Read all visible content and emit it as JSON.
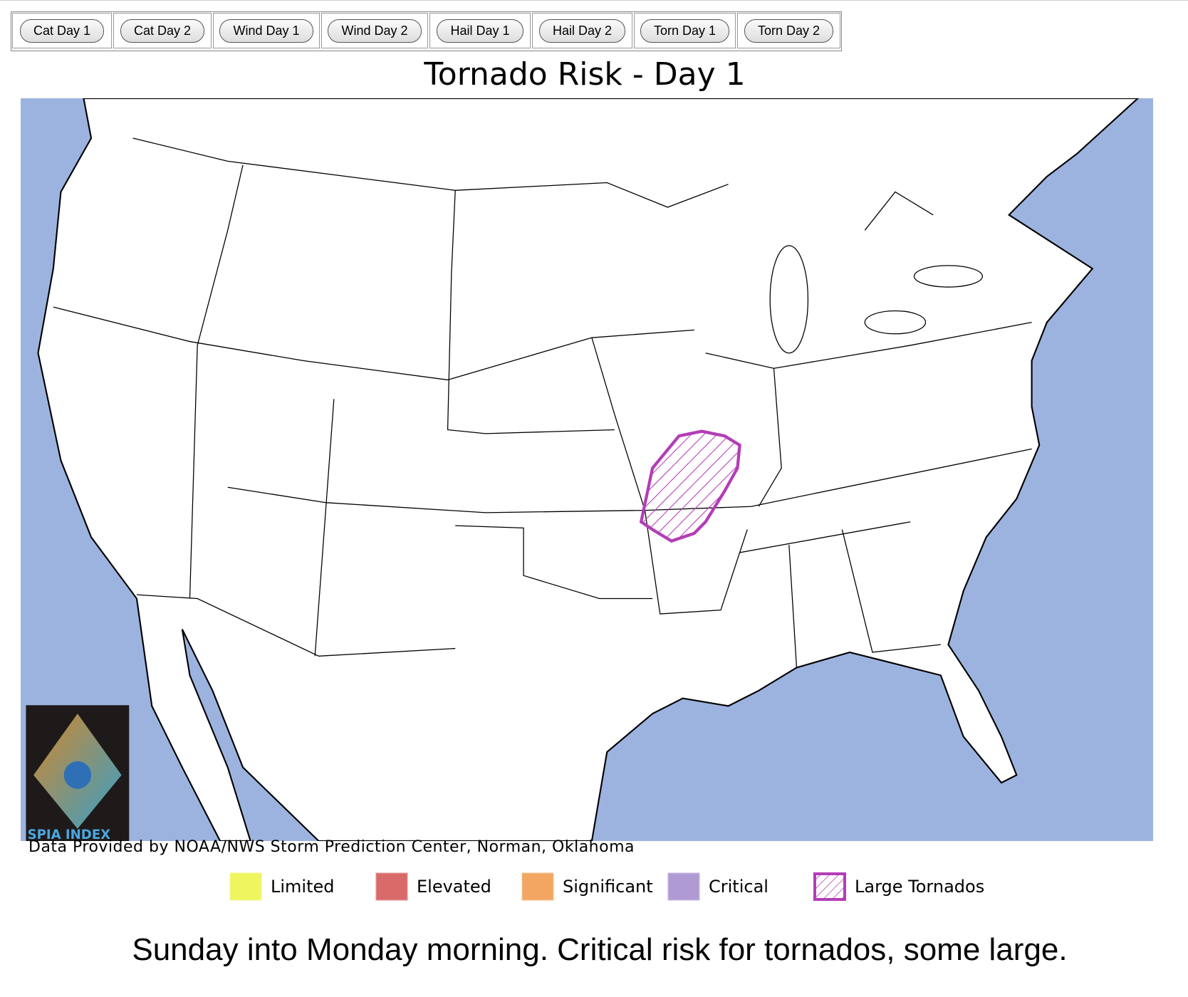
{
  "tabs": [
    "Cat Day 1",
    "Cat Day 2",
    "Wind Day 1",
    "Wind Day 2",
    "Hail Day 1",
    "Hail Day 2",
    "Torn Day 1",
    "Torn Day 2"
  ],
  "title": "Tornado Risk - Day 1",
  "logo": "SPIA INDEX",
  "credit": "Data Provided by NOAA/NWS Storm Prediction Center, Norman, Oklahoma",
  "legend": [
    {
      "label": "Limited",
      "color": "#eef55e"
    },
    {
      "label": "Elevated",
      "color": "#d96a6a"
    },
    {
      "label": "Significant",
      "color": "#f2a662"
    },
    {
      "label": "Critical",
      "color": "#b09ad4"
    },
    {
      "label": "Large Tornados",
      "color": "#b33db6",
      "hatched": true
    }
  ],
  "caption": "Sunday into Monday morning. Critical risk for tornados, some large."
}
